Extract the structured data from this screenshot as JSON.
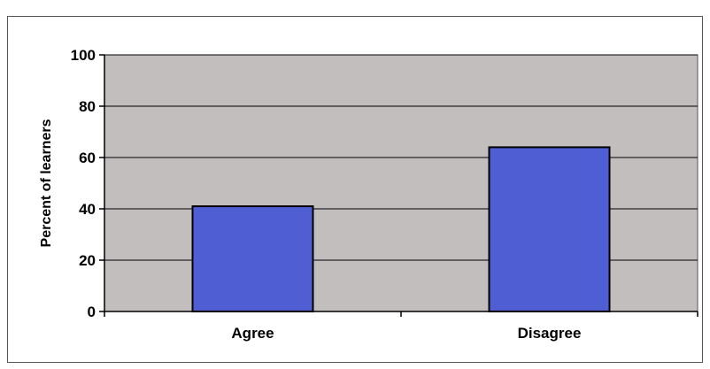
{
  "chart_data": {
    "type": "bar",
    "title": "",
    "xlabel": "",
    "ylabel": "Percent of learners",
    "categories": [
      "Agree",
      "Disagree"
    ],
    "values": [
      41,
      64
    ],
    "ylim": [
      0,
      100
    ],
    "yticks": [
      0,
      20,
      40,
      60,
      80,
      100
    ],
    "ytick_labels": [
      "0",
      "20",
      "40",
      "60",
      "80",
      "100"
    ],
    "grid": true,
    "legend": "none",
    "colors": {
      "bar": "#4f5fd3",
      "plot_background": "#c2bebe",
      "gridline": "#000000"
    }
  }
}
